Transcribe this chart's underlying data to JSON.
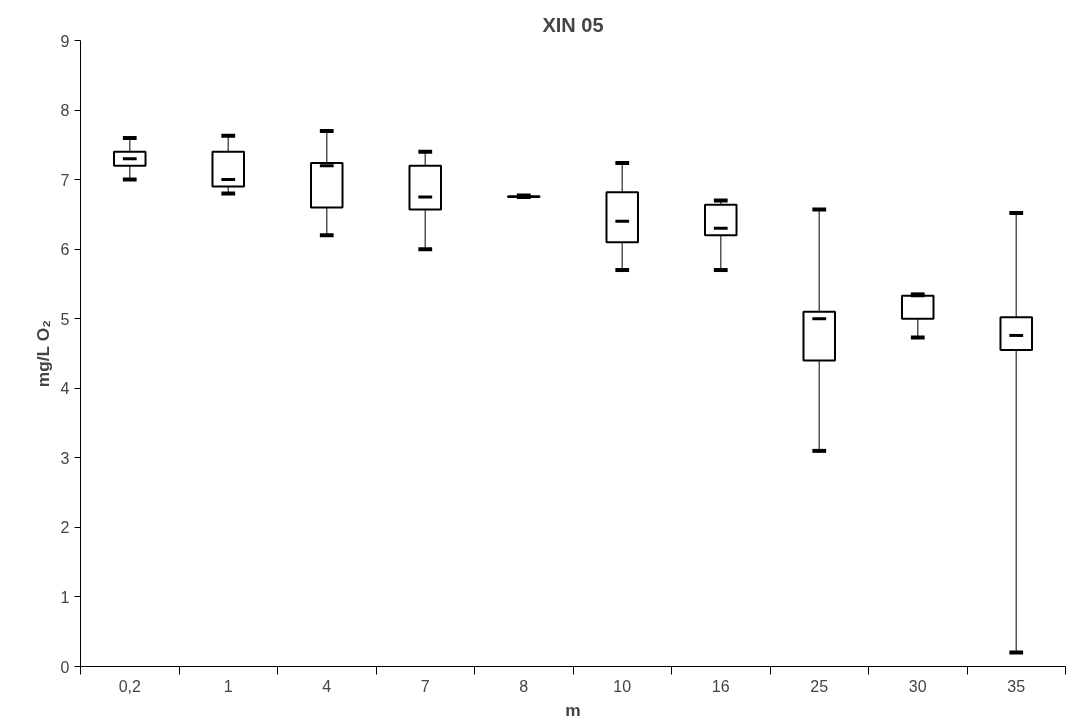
{
  "chart_data": {
    "type": "box",
    "title": "XIN 05",
    "xlabel": "m",
    "ylabel": "mg/L O₂",
    "categories": [
      "0,2",
      "1",
      "4",
      "7",
      "8",
      "10",
      "16",
      "25",
      "30",
      "35"
    ],
    "boxes": [
      {
        "low": 7.0,
        "q1": 7.2,
        "median": 7.3,
        "q3": 7.4,
        "high": 7.6
      },
      {
        "low": 6.8,
        "q1": 6.9,
        "median": 7.0,
        "q3": 7.4,
        "high": 7.63
      },
      {
        "low": 6.2,
        "q1": 6.6,
        "median": 7.2,
        "q3": 7.24,
        "high": 7.7
      },
      {
        "low": 6.0,
        "q1": 6.57,
        "median": 6.75,
        "q3": 7.2,
        "high": 7.4
      },
      {
        "low": 6.75,
        "q1": 6.75,
        "median": 6.76,
        "q3": 6.76,
        "high": 6.77
      },
      {
        "low": 5.7,
        "q1": 6.1,
        "median": 6.4,
        "q3": 6.82,
        "high": 7.24
      },
      {
        "low": 5.7,
        "q1": 6.2,
        "median": 6.3,
        "q3": 6.64,
        "high": 6.7
      },
      {
        "low": 3.1,
        "q1": 4.4,
        "median": 5.0,
        "q3": 5.1,
        "high": 6.57
      },
      {
        "low": 4.73,
        "q1": 5.0,
        "median": 5.33,
        "q3": 5.33,
        "high": 5.35
      },
      {
        "low": 0.2,
        "q1": 4.55,
        "median": 4.76,
        "q3": 5.02,
        "high": 6.52
      }
    ],
    "color": "#ffffff",
    "ylim": [
      0,
      9
    ],
    "yticks": [
      0,
      1,
      2,
      3,
      4,
      5,
      6,
      7,
      8,
      9
    ],
    "grid": false
  }
}
